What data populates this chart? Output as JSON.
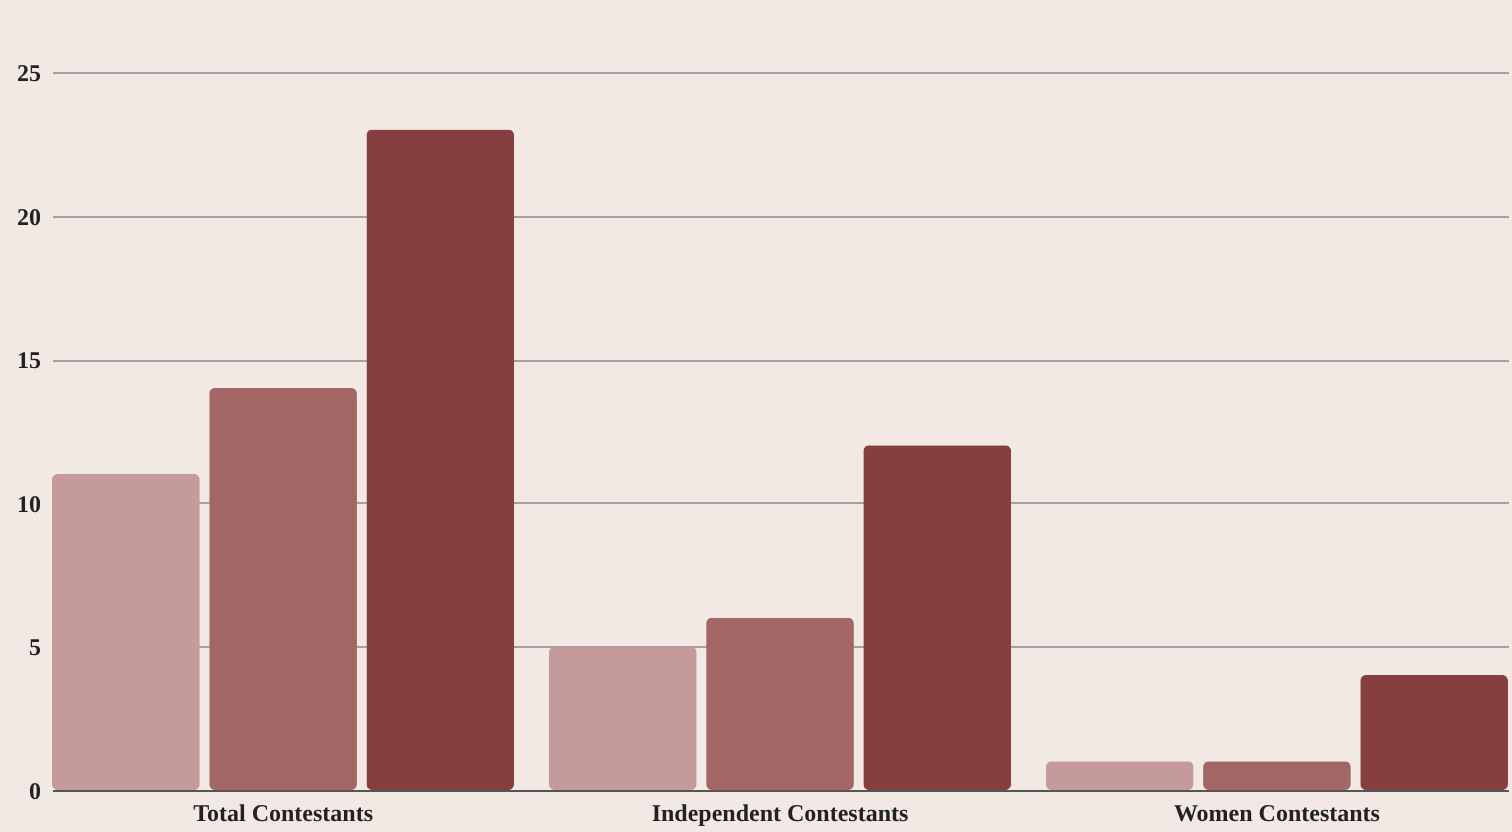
{
  "chart_data": {
    "type": "bar",
    "categories": [
      "Total Contestants",
      "Independent Contestants",
      "Women Contestants"
    ],
    "series": [
      {
        "color": "#c49b9a",
        "values": [
          11,
          5,
          1
        ]
      },
      {
        "color": "#a46565",
        "values": [
          14,
          6,
          1
        ]
      },
      {
        "color": "#863f3f",
        "values": [
          23,
          12,
          4
        ]
      }
    ],
    "ylim": [
      0,
      25
    ],
    "yticks": [
      0,
      5,
      10,
      15,
      20,
      25
    ],
    "grid": "y",
    "legend": false
  }
}
